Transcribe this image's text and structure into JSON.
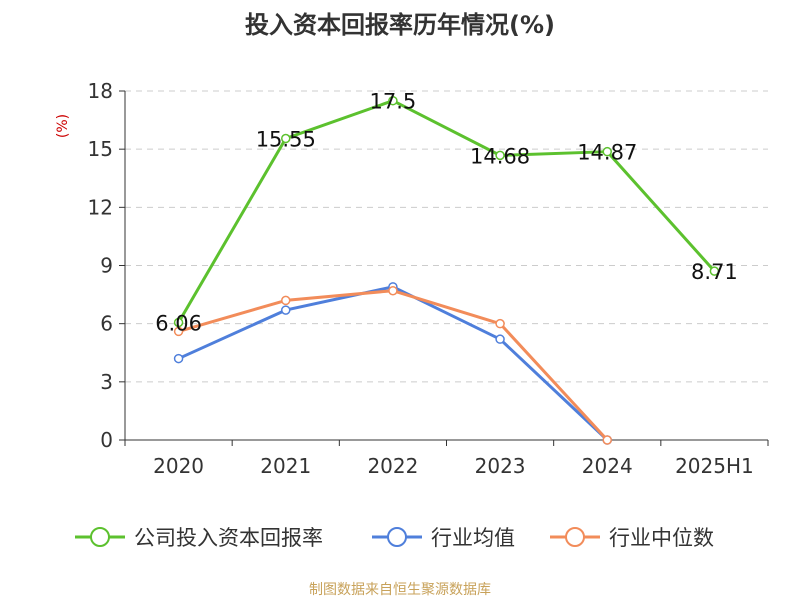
{
  "chart_data": {
    "type": "line",
    "title": "投入资本回报率历年情况(%)",
    "ylabel": "(%)",
    "xlabel": "",
    "categories": [
      "2020",
      "2021",
      "2022",
      "2023",
      "2024",
      "2025H1"
    ],
    "ylim": [
      0,
      18
    ],
    "yticks": [
      0,
      3,
      6,
      9,
      12,
      15,
      18
    ],
    "grid": true,
    "legend_position": "bottom",
    "series": [
      {
        "name": "公司投入资本回报率",
        "color": "#5cc12e",
        "values": [
          6.06,
          15.55,
          17.5,
          14.68,
          14.87,
          8.71
        ],
        "labels": [
          "6.06",
          "15.55",
          "17.5",
          "14.68",
          "14.87",
          "8.71"
        ]
      },
      {
        "name": "行业均值",
        "color": "#4f7fdb",
        "values": [
          4.2,
          6.7,
          7.9,
          5.2,
          0,
          null
        ]
      },
      {
        "name": "行业中位数",
        "color": "#f28c5a",
        "values": [
          5.6,
          7.2,
          7.7,
          6.0,
          0,
          null
        ]
      }
    ]
  },
  "footer": {
    "source": "制图数据来自恒生聚源数据库"
  }
}
